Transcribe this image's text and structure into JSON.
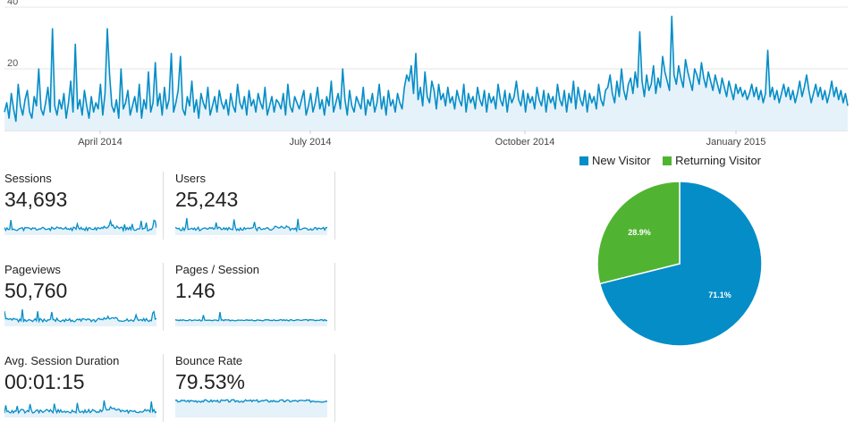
{
  "chart_data": [
    {
      "type": "line",
      "ylim": [
        0,
        40
      ],
      "yticks": [
        20,
        40
      ],
      "xticks": [
        "April 2014",
        "July 2014",
        "October 2014",
        "January 2015"
      ],
      "grid": true,
      "series": [
        {
          "color": "#058dc7",
          "values": [
            6,
            9,
            4,
            12,
            7,
            3,
            15,
            8,
            5,
            10,
            13,
            6,
            4,
            11,
            8,
            20,
            7,
            5,
            9,
            14,
            6,
            33,
            8,
            5,
            10,
            7,
            12,
            4,
            9,
            16,
            6,
            28,
            7,
            10,
            5,
            13,
            8,
            4,
            11,
            6,
            9,
            7,
            15,
            5,
            12,
            33,
            18,
            8,
            6,
            10,
            4,
            20,
            7,
            9,
            13,
            5,
            8,
            11,
            6,
            15,
            4,
            10,
            7,
            19,
            6,
            9,
            22,
            8,
            12,
            5,
            14,
            7,
            10,
            25,
            6,
            9,
            13,
            24,
            7,
            5,
            11,
            8,
            16,
            6,
            10,
            4,
            12,
            9,
            7,
            14,
            5,
            8,
            11,
            6,
            13,
            9,
            7,
            10,
            5,
            12,
            8,
            6,
            15,
            9,
            7,
            11,
            5,
            13,
            8,
            10,
            6,
            12,
            9,
            7,
            14,
            5,
            8,
            11,
            6,
            10,
            9,
            7,
            12,
            5,
            15,
            8,
            6,
            11,
            9,
            7,
            10,
            13,
            5,
            8,
            12,
            6,
            9,
            14,
            7,
            10,
            5,
            11,
            8,
            16,
            6,
            9,
            12,
            7,
            20,
            10,
            5,
            13,
            8,
            6,
            11,
            9,
            7,
            14,
            5,
            10,
            8,
            12,
            6,
            9,
            15,
            7,
            11,
            5,
            13,
            8,
            10,
            6,
            12,
            9,
            7,
            14,
            18,
            16,
            21,
            12,
            25,
            10,
            14,
            8,
            19,
            11,
            9,
            16,
            13,
            7,
            15,
            10,
            12,
            8,
            14,
            9,
            11,
            7,
            13,
            10,
            8,
            15,
            6,
            12,
            9,
            11,
            7,
            14,
            10,
            8,
            13,
            6,
            12,
            9,
            11,
            7,
            15,
            10,
            8,
            13,
            6,
            12,
            9,
            11,
            16,
            10,
            8,
            13,
            6,
            12,
            9,
            11,
            7,
            14,
            10,
            8,
            13,
            6,
            12,
            9,
            11,
            7,
            15,
            10,
            8,
            13,
            6,
            12,
            9,
            16,
            7,
            14,
            10,
            8,
            13,
            6,
            12,
            9,
            11,
            7,
            15,
            10,
            8,
            13,
            14,
            18,
            12,
            9,
            16,
            11,
            20,
            13,
            10,
            15,
            17,
            12,
            19,
            14,
            32,
            16,
            11,
            18,
            13,
            15,
            21,
            12,
            17,
            14,
            24,
            19,
            16,
            13,
            37,
            18,
            15,
            21,
            17,
            14,
            23,
            19,
            16,
            13,
            20,
            18,
            15,
            22,
            17,
            14,
            19,
            16,
            13,
            18,
            15,
            12,
            17,
            14,
            11,
            16,
            13,
            10,
            15,
            12,
            14,
            11,
            13,
            10,
            12,
            15,
            11,
            14,
            10,
            13,
            9,
            12,
            26,
            11,
            14,
            10,
            13,
            9,
            12,
            15,
            11,
            14,
            10,
            13,
            9,
            12,
            16,
            11,
            14,
            18,
            13,
            9,
            12,
            15,
            11,
            14,
            10,
            13,
            9,
            12,
            16,
            11,
            14,
            10,
            13,
            9,
            12,
            8
          ]
        }
      ]
    },
    {
      "type": "pie",
      "legend": "top",
      "categories": [
        "New Visitor",
        "Returning Visitor"
      ],
      "values": [
        71.1,
        28.9
      ],
      "labels": [
        "71.1%",
        "28.9%"
      ],
      "colors": [
        "#058dc7",
        "#50b432"
      ]
    }
  ],
  "metrics": [
    {
      "label": "Sessions",
      "value": "34,693",
      "type": "sparkline",
      "seed": 11
    },
    {
      "label": "Users",
      "value": "25,243",
      "type": "sparkline",
      "seed": 23
    },
    {
      "label": "Pageviews",
      "value": "50,760",
      "type": "sparkline",
      "seed": 37
    },
    {
      "label": "Pages / Session",
      "value": "1.46",
      "type": "flat",
      "seed": 41
    },
    {
      "label": "Avg. Session Duration",
      "value": "00:01:15",
      "type": "sparkline",
      "seed": 53
    },
    {
      "label": "Bounce Rate",
      "value": "79.53%",
      "type": "band",
      "seed": 67
    }
  ]
}
